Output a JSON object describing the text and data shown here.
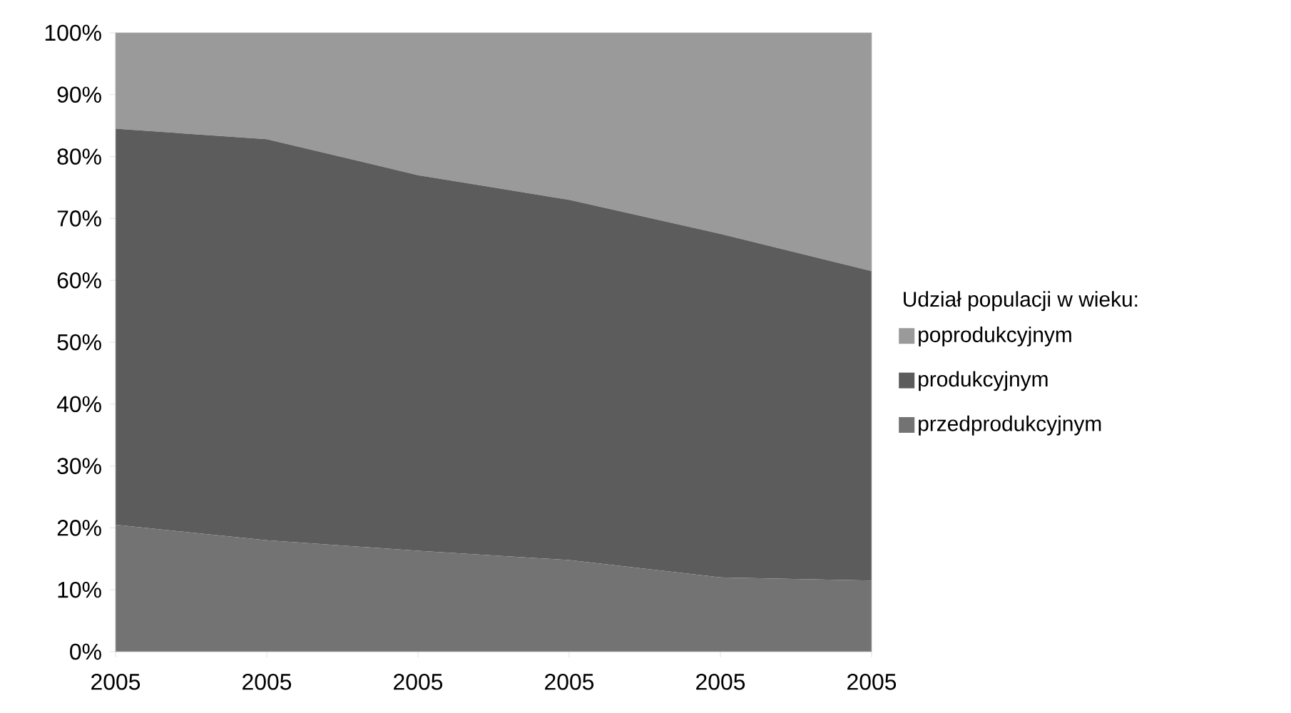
{
  "chart_data": {
    "type": "area",
    "stacked": true,
    "legend_title": "Udział populacji w wieku:",
    "legend": "right",
    "grid": false,
    "categories": [
      "2005",
      "2005",
      "2005",
      "2005",
      "2005",
      "2005"
    ],
    "series": [
      {
        "name": "przedprodukcyjnym",
        "color": "#737373",
        "values": [
          20.5,
          18,
          16.3,
          14.8,
          12,
          11.5
        ]
      },
      {
        "name": "produkcyjnym",
        "color": "#5c5c5c",
        "values": [
          64,
          64.8,
          60.7,
          58.2,
          55.5,
          50
        ]
      },
      {
        "name": "poprodukcyjnym",
        "color": "#9a9a9a",
        "values": [
          15.5,
          17.2,
          23,
          27,
          32.5,
          38.5
        ]
      }
    ],
    "ylim": [
      0,
      100
    ],
    "yticks": [
      {
        "value": 0,
        "label": "0%"
      },
      {
        "value": 10,
        "label": "10%"
      },
      {
        "value": 20,
        "label": "20%"
      },
      {
        "value": 30,
        "label": "30%"
      },
      {
        "value": 40,
        "label": "40%"
      },
      {
        "value": 50,
        "label": "50%"
      },
      {
        "value": 60,
        "label": "60%"
      },
      {
        "value": 70,
        "label": "70%"
      },
      {
        "value": 80,
        "label": "80%"
      },
      {
        "value": 90,
        "label": "90%"
      },
      {
        "value": 100,
        "label": "100%"
      }
    ]
  }
}
